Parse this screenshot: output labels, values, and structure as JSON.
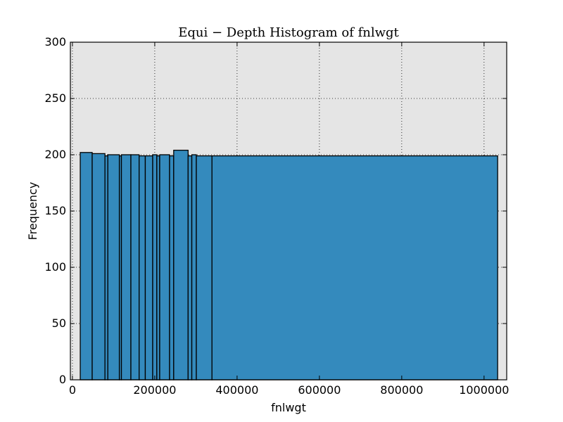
{
  "chart_data": {
    "type": "bar",
    "title": "Equi − Depth Histogram of fnlwgt",
    "xlabel": "fnlwgt",
    "ylabel": "Frequency",
    "xlim": [
      -5000,
      1055000
    ],
    "ylim": [
      0,
      300
    ],
    "xticks": [
      0,
      200000,
      400000,
      600000,
      800000,
      1000000
    ],
    "yticks": [
      0,
      50,
      100,
      150,
      200,
      250,
      300
    ],
    "grid": true,
    "legend": "none",
    "bar_color": "#348abd",
    "background_color": "#e5e5e5",
    "bins": [
      {
        "start": 19000,
        "end": 48000,
        "value": 202
      },
      {
        "start": 48000,
        "end": 79000,
        "value": 201
      },
      {
        "start": 79000,
        "end": 86000,
        "value": 199
      },
      {
        "start": 86000,
        "end": 114000,
        "value": 200
      },
      {
        "start": 114000,
        "end": 119000,
        "value": 199
      },
      {
        "start": 119000,
        "end": 142000,
        "value": 200
      },
      {
        "start": 142000,
        "end": 162000,
        "value": 200
      },
      {
        "start": 162000,
        "end": 177000,
        "value": 199
      },
      {
        "start": 177000,
        "end": 195000,
        "value": 199
      },
      {
        "start": 195000,
        "end": 205000,
        "value": 200
      },
      {
        "start": 205000,
        "end": 212000,
        "value": 199
      },
      {
        "start": 212000,
        "end": 236000,
        "value": 200
      },
      {
        "start": 236000,
        "end": 246000,
        "value": 199
      },
      {
        "start": 246000,
        "end": 281000,
        "value": 204
      },
      {
        "start": 281000,
        "end": 290000,
        "value": 199
      },
      {
        "start": 290000,
        "end": 301000,
        "value": 200
      },
      {
        "start": 301000,
        "end": 339000,
        "value": 199
      },
      {
        "start": 339000,
        "end": 1033000,
        "value": 199
      }
    ]
  }
}
